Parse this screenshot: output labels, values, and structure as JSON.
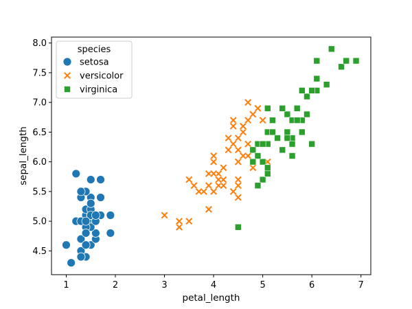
{
  "chart_data": {
    "type": "scatter",
    "title": "",
    "xlabel": "petal_length",
    "ylabel": "sepal_length",
    "xlim": [
      0.7,
      7.2
    ],
    "ylim": [
      4.1,
      8.1
    ],
    "xticks": [
      1,
      2,
      3,
      4,
      5,
      6,
      7
    ],
    "yticks": [
      4.5,
      5.0,
      5.5,
      6.0,
      6.5,
      7.0,
      7.5,
      8.0
    ],
    "xtick_labels": [
      "1",
      "2",
      "3",
      "4",
      "5",
      "6",
      "7"
    ],
    "ytick_labels": [
      "4.5",
      "5.0",
      "5.5",
      "6.0",
      "6.5",
      "7.0",
      "7.5",
      "8.0"
    ],
    "grid": false,
    "legend": {
      "title": "species",
      "location": "top-left"
    },
    "series": [
      {
        "name": "setosa",
        "marker": "circle",
        "color": "#1f77b4",
        "points": [
          [
            1.4,
            5.1
          ],
          [
            1.4,
            4.9
          ],
          [
            1.3,
            4.7
          ],
          [
            1.5,
            4.6
          ],
          [
            1.4,
            5.0
          ],
          [
            1.7,
            5.4
          ],
          [
            1.4,
            4.6
          ],
          [
            1.5,
            5.0
          ],
          [
            1.4,
            4.4
          ],
          [
            1.5,
            4.9
          ],
          [
            1.5,
            5.4
          ],
          [
            1.6,
            4.8
          ],
          [
            1.4,
            4.8
          ],
          [
            1.1,
            4.3
          ],
          [
            1.2,
            5.8
          ],
          [
            1.5,
            5.7
          ],
          [
            1.3,
            5.4
          ],
          [
            1.4,
            5.1
          ],
          [
            1.7,
            5.7
          ],
          [
            1.5,
            5.1
          ],
          [
            1.7,
            5.4
          ],
          [
            1.5,
            5.1
          ],
          [
            1.0,
            4.6
          ],
          [
            1.7,
            5.1
          ],
          [
            1.9,
            4.8
          ],
          [
            1.6,
            5.0
          ],
          [
            1.6,
            5.0
          ],
          [
            1.5,
            5.2
          ],
          [
            1.4,
            5.2
          ],
          [
            1.6,
            4.7
          ],
          [
            1.6,
            4.8
          ],
          [
            1.5,
            5.4
          ],
          [
            1.5,
            5.2
          ],
          [
            1.4,
            5.5
          ],
          [
            1.5,
            4.9
          ],
          [
            1.2,
            5.0
          ],
          [
            1.3,
            5.5
          ],
          [
            1.4,
            4.9
          ],
          [
            1.3,
            4.4
          ],
          [
            1.5,
            5.1
          ],
          [
            1.3,
            5.0
          ],
          [
            1.3,
            4.5
          ],
          [
            1.3,
            4.4
          ],
          [
            1.6,
            5.0
          ],
          [
            1.9,
            5.1
          ],
          [
            1.4,
            4.8
          ],
          [
            1.6,
            5.1
          ],
          [
            1.4,
            4.6
          ],
          [
            1.5,
            5.3
          ],
          [
            1.4,
            5.0
          ]
        ]
      },
      {
        "name": "versicolor",
        "marker": "x",
        "color": "#ff7f0e",
        "points": [
          [
            4.7,
            7.0
          ],
          [
            4.5,
            6.4
          ],
          [
            4.9,
            6.9
          ],
          [
            4.0,
            5.5
          ],
          [
            4.6,
            6.5
          ],
          [
            4.5,
            5.7
          ],
          [
            4.7,
            6.3
          ],
          [
            3.3,
            4.9
          ],
          [
            4.6,
            6.6
          ],
          [
            3.9,
            5.2
          ],
          [
            3.5,
            5.0
          ],
          [
            4.2,
            5.9
          ],
          [
            4.0,
            6.0
          ],
          [
            4.7,
            6.1
          ],
          [
            3.6,
            5.6
          ],
          [
            4.4,
            6.7
          ],
          [
            4.5,
            5.6
          ],
          [
            4.1,
            5.8
          ],
          [
            4.5,
            6.2
          ],
          [
            3.9,
            5.6
          ],
          [
            4.8,
            5.9
          ],
          [
            4.0,
            6.1
          ],
          [
            4.9,
            6.3
          ],
          [
            4.7,
            6.1
          ],
          [
            4.3,
            6.4
          ],
          [
            4.4,
            6.6
          ],
          [
            4.8,
            6.8
          ],
          [
            5.0,
            6.7
          ],
          [
            4.5,
            6.0
          ],
          [
            3.5,
            5.7
          ],
          [
            3.8,
            5.5
          ],
          [
            3.7,
            5.5
          ],
          [
            3.9,
            5.8
          ],
          [
            5.1,
            6.0
          ],
          [
            4.5,
            5.4
          ],
          [
            4.5,
            6.0
          ],
          [
            4.7,
            6.7
          ],
          [
            4.4,
            6.3
          ],
          [
            4.1,
            5.6
          ],
          [
            4.0,
            5.5
          ],
          [
            4.4,
            5.5
          ],
          [
            4.6,
            6.1
          ],
          [
            4.0,
            5.8
          ],
          [
            3.3,
            5.0
          ],
          [
            4.2,
            5.6
          ],
          [
            4.2,
            5.7
          ],
          [
            4.2,
            5.7
          ],
          [
            4.3,
            6.2
          ],
          [
            3.0,
            5.1
          ],
          [
            4.1,
            5.7
          ]
        ]
      },
      {
        "name": "virginica",
        "marker": "square",
        "color": "#2ca02c",
        "points": [
          [
            6.0,
            6.3
          ],
          [
            5.1,
            5.8
          ],
          [
            5.9,
            7.1
          ],
          [
            5.6,
            6.3
          ],
          [
            5.8,
            6.5
          ],
          [
            6.6,
            7.6
          ],
          [
            4.5,
            4.9
          ],
          [
            6.3,
            7.3
          ],
          [
            5.8,
            6.7
          ],
          [
            6.1,
            7.2
          ],
          [
            5.1,
            6.5
          ],
          [
            5.3,
            6.4
          ],
          [
            5.5,
            6.8
          ],
          [
            5.0,
            5.7
          ],
          [
            5.1,
            5.8
          ],
          [
            5.3,
            6.4
          ],
          [
            5.5,
            6.5
          ],
          [
            6.7,
            7.7
          ],
          [
            6.9,
            7.7
          ],
          [
            5.0,
            6.0
          ],
          [
            5.7,
            6.9
          ],
          [
            4.9,
            5.6
          ],
          [
            6.7,
            7.7
          ],
          [
            4.9,
            6.3
          ],
          [
            5.7,
            6.7
          ],
          [
            6.0,
            7.2
          ],
          [
            4.8,
            6.2
          ],
          [
            4.9,
            6.1
          ],
          [
            5.6,
            6.4
          ],
          [
            5.8,
            7.2
          ],
          [
            6.1,
            7.4
          ],
          [
            6.4,
            7.9
          ],
          [
            5.6,
            6.4
          ],
          [
            5.1,
            6.3
          ],
          [
            5.6,
            6.1
          ],
          [
            6.1,
            7.7
          ],
          [
            5.6,
            6.3
          ],
          [
            5.5,
            6.4
          ],
          [
            4.8,
            6.0
          ],
          [
            5.4,
            6.9
          ],
          [
            5.6,
            6.7
          ],
          [
            5.1,
            6.9
          ],
          [
            5.1,
            5.8
          ],
          [
            5.9,
            6.8
          ],
          [
            5.7,
            6.7
          ],
          [
            5.2,
            6.7
          ],
          [
            5.0,
            6.3
          ],
          [
            5.2,
            6.5
          ],
          [
            5.4,
            6.2
          ],
          [
            5.1,
            5.9
          ]
        ]
      }
    ]
  }
}
